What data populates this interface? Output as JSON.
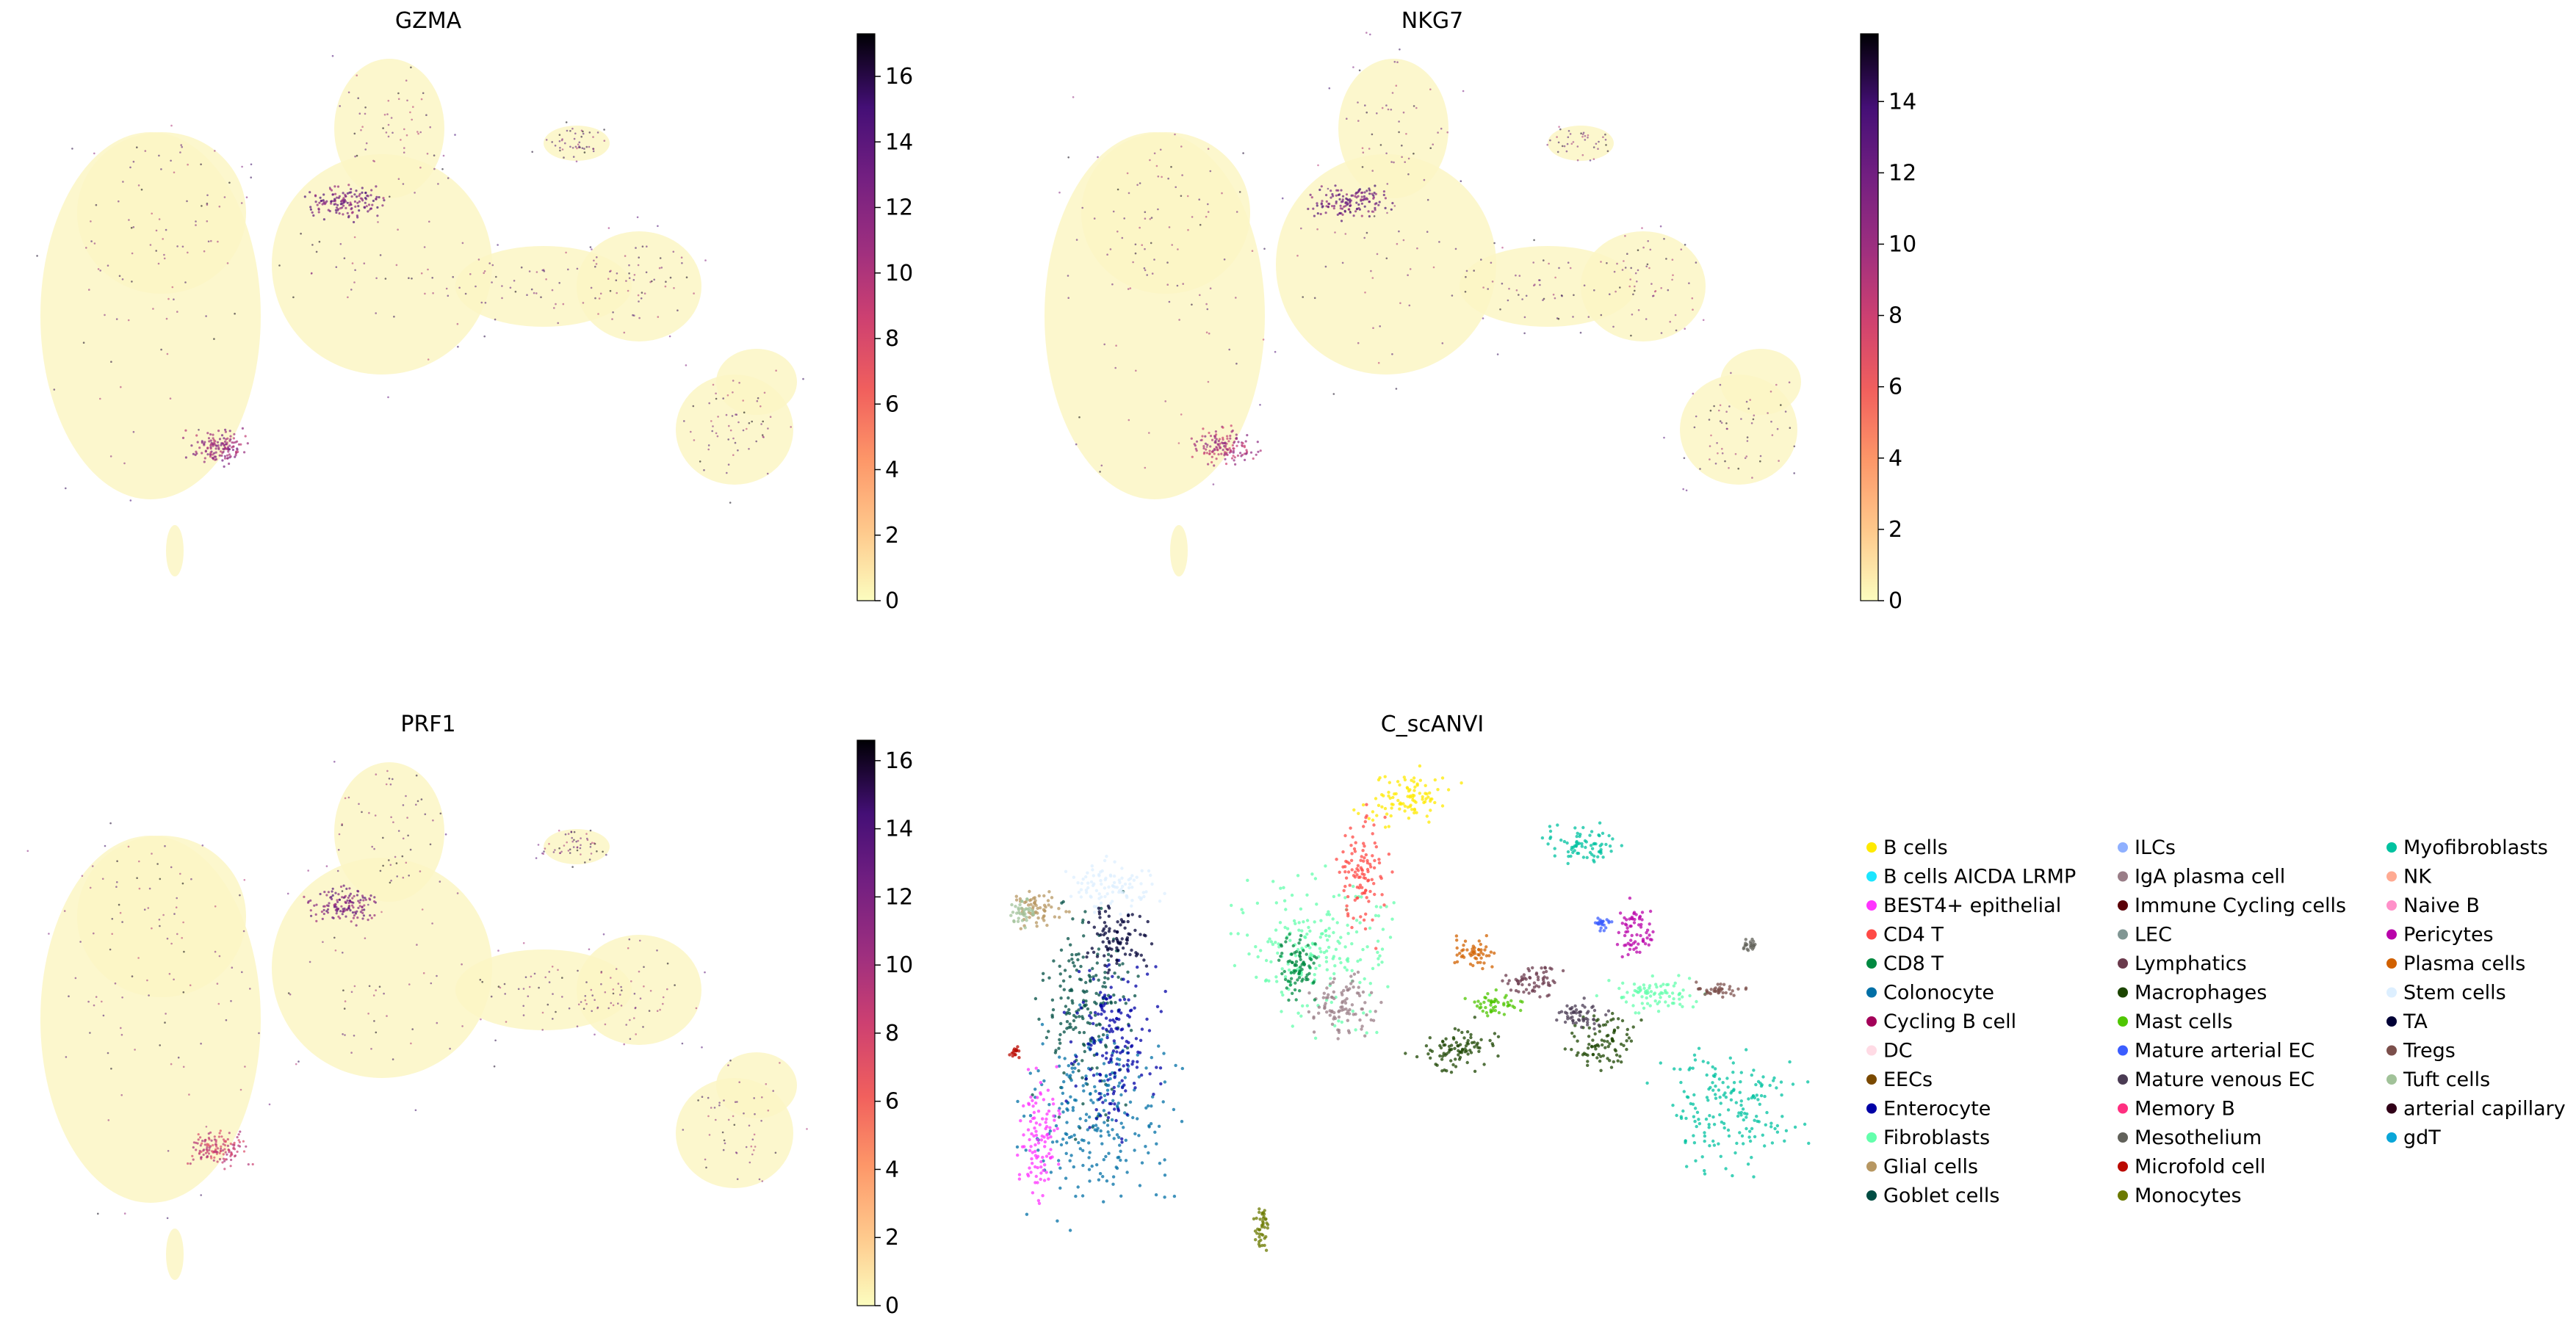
{
  "chart_data": [
    {
      "type": "scatter",
      "title": "GZMA",
      "xlabel": "",
      "ylabel": "",
      "colorbar": {
        "min": 0,
        "max": 17.3,
        "ticks": [
          0,
          2,
          4,
          6,
          8,
          10,
          12,
          14,
          16
        ],
        "colormap": "magma_r"
      },
      "hotspots": [
        {
          "region": "upper-middle lobe",
          "value": 15
        },
        {
          "region": "lower-left lobe edge",
          "value": 13
        }
      ]
    },
    {
      "type": "scatter",
      "title": "NKG7",
      "xlabel": "",
      "ylabel": "",
      "colorbar": {
        "min": 0,
        "max": 15.9,
        "ticks": [
          0,
          2,
          4,
          6,
          8,
          10,
          12,
          14
        ],
        "colormap": "magma_r"
      },
      "hotspots": [
        {
          "region": "upper-middle lobe",
          "value": 14
        },
        {
          "region": "lower-left lobe edge",
          "value": 11
        }
      ]
    },
    {
      "type": "scatter",
      "title": "PRF1",
      "xlabel": "",
      "ylabel": "",
      "colorbar": {
        "min": 0,
        "max": 16.6,
        "ticks": [
          0,
          2,
          4,
          6,
          8,
          10,
          12,
          14,
          16
        ],
        "colormap": "magma_r"
      },
      "hotspots": [
        {
          "region": "upper-middle lobe",
          "value": 14
        },
        {
          "region": "lower-left lobe edge",
          "value": 10
        }
      ]
    },
    {
      "type": "scatter",
      "title": "C_scANVI",
      "xlabel": "",
      "ylabel": "",
      "legend_position": "right",
      "categories": [
        {
          "name": "B cells",
          "color": "#ffea00"
        },
        {
          "name": "B cells AICDA LRMP",
          "color": "#1ce6ff"
        },
        {
          "name": "BEST4+ epithelial",
          "color": "#ff34ff"
        },
        {
          "name": "CD4 T",
          "color": "#ff4a46"
        },
        {
          "name": "CD8 T",
          "color": "#008941"
        },
        {
          "name": "Colonocyte",
          "color": "#006fa6"
        },
        {
          "name": "Cycling B cell",
          "color": "#a30059"
        },
        {
          "name": "DC",
          "color": "#ffdbe5"
        },
        {
          "name": "EECs",
          "color": "#7a4900"
        },
        {
          "name": "Enterocyte",
          "color": "#0000a6"
        },
        {
          "name": "Fibroblasts",
          "color": "#63ffac"
        },
        {
          "name": "Glial cells",
          "color": "#b79762"
        },
        {
          "name": "Goblet cells",
          "color": "#004d43"
        },
        {
          "name": "ILCs",
          "color": "#8fb0ff"
        },
        {
          "name": "IgA plasma cell",
          "color": "#997d87"
        },
        {
          "name": "Immune Cycling cells",
          "color": "#5a0007"
        },
        {
          "name": "LEC",
          "color": "#809693"
        },
        {
          "name": "Lymphatics",
          "color": "#6a3a4c"
        },
        {
          "name": "Macrophages",
          "color": "#1b4400"
        },
        {
          "name": "Mast cells",
          "color": "#4fc601"
        },
        {
          "name": "Mature arterial EC",
          "color": "#3b5dff"
        },
        {
          "name": "Mature venous EC",
          "color": "#4a3b53"
        },
        {
          "name": "Memory B",
          "color": "#ff2f80"
        },
        {
          "name": "Mesothelium",
          "color": "#61615a"
        },
        {
          "name": "Microfold cell",
          "color": "#ba0900"
        },
        {
          "name": "Monocytes",
          "color": "#6b7900"
        },
        {
          "name": "Myofibroblasts",
          "color": "#00c2a0"
        },
        {
          "name": "NK",
          "color": "#ffaa92"
        },
        {
          "name": "Naive B",
          "color": "#ff90c9"
        },
        {
          "name": "Pericytes",
          "color": "#b903aa"
        },
        {
          "name": "Plasma cells",
          "color": "#d16100"
        },
        {
          "name": "Stem cells",
          "color": "#ddefff"
        },
        {
          "name": "TA",
          "color": "#000035"
        },
        {
          "name": "Tregs",
          "color": "#7b4f4b"
        },
        {
          "name": "Tuft cells",
          "color": "#a1c299"
        },
        {
          "name": "arterial capillary",
          "color": "#300018"
        },
        {
          "name": "gdT",
          "color": "#0aa6d8"
        }
      ]
    }
  ]
}
